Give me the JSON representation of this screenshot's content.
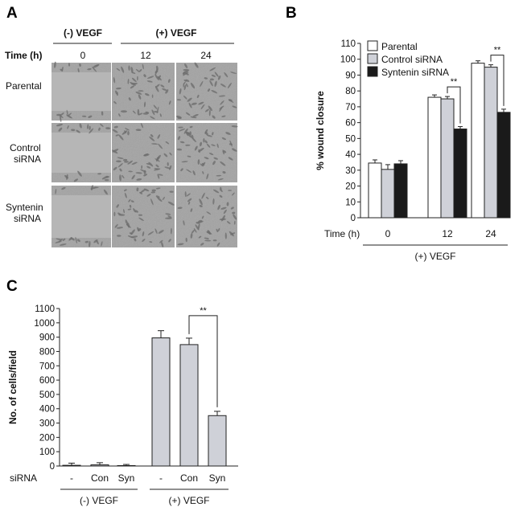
{
  "panels": {
    "a": "A",
    "b": "B",
    "c": "C"
  },
  "panel_a": {
    "neg_header": "(-) VEGF",
    "pos_header": "(+) VEGF",
    "time_label": "Time (h)",
    "times": [
      "0",
      "12",
      "24"
    ],
    "rows": [
      {
        "line1": "Parental",
        "line2": ""
      },
      {
        "line1": "Control",
        "line2": "siRNA"
      },
      {
        "line1": "Syntenin",
        "line2": "siRNA"
      }
    ]
  },
  "chart_data": [
    {
      "type": "bar",
      "panel": "B",
      "categories": [
        "0",
        "12",
        "24"
      ],
      "x_axis_title": "Time (h)",
      "group_label": "(+) VEGF",
      "ylabel": "% wound closure",
      "ylim": [
        0,
        110
      ],
      "yticks": [
        0,
        10,
        20,
        30,
        40,
        50,
        60,
        70,
        80,
        90,
        100,
        110
      ],
      "legend_position": "top-left",
      "series": [
        {
          "name": "Parental",
          "color": "#ffffff",
          "values": [
            34.5,
            76,
            97.5
          ],
          "errors": [
            2,
            1.5,
            1.5
          ]
        },
        {
          "name": "Control siRNA",
          "color": "#cfd1d8",
          "values": [
            30.5,
            75,
            95
          ],
          "errors": [
            3,
            1.5,
            1.5
          ]
        },
        {
          "name": "Syntenin siRNA",
          "color": "#1a1a1a",
          "values": [
            34,
            56,
            66.5
          ],
          "errors": [
            2,
            1.5,
            2
          ]
        }
      ],
      "significance": [
        {
          "category": "12",
          "between": [
            "Control siRNA",
            "Syntenin siRNA"
          ],
          "label": "**"
        },
        {
          "category": "24",
          "between": [
            "Control siRNA",
            "Syntenin siRNA"
          ],
          "label": "**"
        }
      ]
    },
    {
      "type": "bar",
      "panel": "C",
      "categories": [
        "-",
        "Con",
        "Syn",
        "-",
        "Con",
        "Syn"
      ],
      "x_axis_title": "siRNA",
      "groups": [
        {
          "label": "(-) VEGF",
          "span": [
            0,
            2
          ]
        },
        {
          "label": "(+) VEGF",
          "span": [
            3,
            5
          ]
        }
      ],
      "ylabel": "No. of cells/field",
      "ylim": [
        0,
        1100
      ],
      "yticks": [
        0,
        100,
        200,
        300,
        400,
        500,
        600,
        700,
        800,
        900,
        1000,
        1100
      ],
      "bar_color": "#cfd1d8",
      "values": [
        5,
        8,
        3,
        895,
        848,
        352
      ],
      "errors": [
        15,
        15,
        8,
        50,
        45,
        30
      ],
      "significance": [
        {
          "between": [
            4,
            5
          ],
          "label": "**"
        }
      ]
    }
  ]
}
